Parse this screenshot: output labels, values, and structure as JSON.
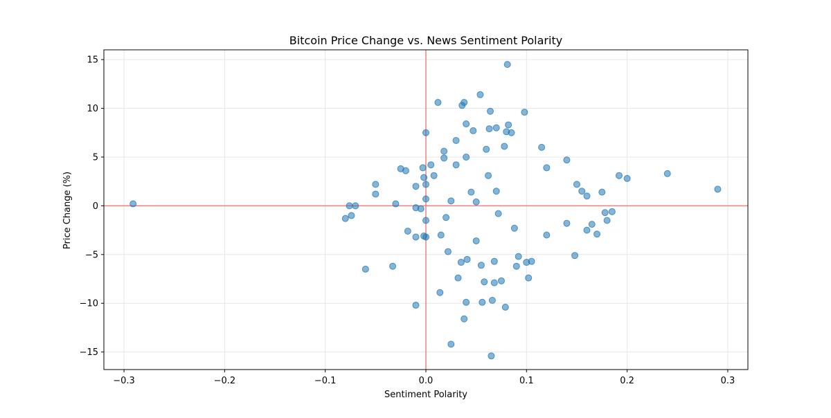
{
  "chart_data": {
    "type": "scatter",
    "title": "Bitcoin Price Change vs. News Sentiment Polarity",
    "xlabel": "Sentiment Polarity",
    "ylabel": "Price Change (%)",
    "xlim": [
      -0.32,
      0.32
    ],
    "ylim": [
      -16.8,
      16
    ],
    "xticks": [
      -0.3,
      -0.2,
      -0.1,
      0.0,
      0.1,
      0.2,
      0.3
    ],
    "xtick_labels": [
      "−0.3",
      "−0.2",
      "−0.1",
      "0.0",
      "0.1",
      "0.2",
      "0.3"
    ],
    "yticks": [
      -15,
      -10,
      -5,
      0,
      5,
      10,
      15
    ],
    "ytick_labels": [
      "−15",
      "−10",
      "−5",
      "0",
      "5",
      "10",
      "15"
    ],
    "grid": true,
    "reference_lines": {
      "x": 0,
      "y": 0,
      "color": "#f08080"
    },
    "point_color": "#1f77b4",
    "points": [
      {
        "x": -0.291,
        "y": 0.2
      },
      {
        "x": -0.08,
        "y": -1.3
      },
      {
        "x": -0.076,
        "y": 0.0
      },
      {
        "x": -0.07,
        "y": 0.0
      },
      {
        "x": -0.074,
        "y": -1.0
      },
      {
        "x": -0.06,
        "y": -6.5
      },
      {
        "x": -0.05,
        "y": 2.2
      },
      {
        "x": -0.05,
        "y": 1.2
      },
      {
        "x": -0.033,
        "y": -6.2
      },
      {
        "x": -0.03,
        "y": 0.2
      },
      {
        "x": -0.025,
        "y": 3.8
      },
      {
        "x": -0.02,
        "y": 3.6
      },
      {
        "x": -0.018,
        "y": -2.6
      },
      {
        "x": -0.01,
        "y": 2.0
      },
      {
        "x": -0.01,
        "y": -10.2
      },
      {
        "x": -0.01,
        "y": -3.2
      },
      {
        "x": -0.01,
        "y": -0.2
      },
      {
        "x": -0.005,
        "y": -0.3
      },
      {
        "x": -0.003,
        "y": 3.9
      },
      {
        "x": -0.002,
        "y": 2.9
      },
      {
        "x": -0.002,
        "y": -3.1
      },
      {
        "x": 0.0,
        "y": 7.5
      },
      {
        "x": 0.0,
        "y": 2.2
      },
      {
        "x": 0.0,
        "y": 0.7
      },
      {
        "x": 0.0,
        "y": -1.5
      },
      {
        "x": 0.0,
        "y": -3.2
      },
      {
        "x": 0.005,
        "y": 4.2
      },
      {
        "x": 0.008,
        "y": 3.1
      },
      {
        "x": 0.012,
        "y": 10.6
      },
      {
        "x": 0.014,
        "y": -8.9
      },
      {
        "x": 0.015,
        "y": -3.0
      },
      {
        "x": 0.018,
        "y": 5.6
      },
      {
        "x": 0.018,
        "y": 4.9
      },
      {
        "x": 0.02,
        "y": -1.2
      },
      {
        "x": 0.022,
        "y": -4.7
      },
      {
        "x": 0.025,
        "y": -14.2
      },
      {
        "x": 0.025,
        "y": 0.5
      },
      {
        "x": 0.03,
        "y": 6.7
      },
      {
        "x": 0.03,
        "y": 4.2
      },
      {
        "x": 0.032,
        "y": -7.4
      },
      {
        "x": 0.035,
        "y": -5.8
      },
      {
        "x": 0.036,
        "y": 10.3
      },
      {
        "x": 0.038,
        "y": 10.6
      },
      {
        "x": 0.038,
        "y": -11.6
      },
      {
        "x": 0.04,
        "y": 8.4
      },
      {
        "x": 0.04,
        "y": -9.9
      },
      {
        "x": 0.04,
        "y": 5.0
      },
      {
        "x": 0.041,
        "y": -5.5
      },
      {
        "x": 0.045,
        "y": 1.4
      },
      {
        "x": 0.047,
        "y": 7.7
      },
      {
        "x": 0.05,
        "y": -3.6
      },
      {
        "x": 0.05,
        "y": 0.4
      },
      {
        "x": 0.054,
        "y": 11.4
      },
      {
        "x": 0.055,
        "y": -6.1
      },
      {
        "x": 0.056,
        "y": -9.9
      },
      {
        "x": 0.058,
        "y": -7.8
      },
      {
        "x": 0.06,
        "y": 5.8
      },
      {
        "x": 0.062,
        "y": 3.1
      },
      {
        "x": 0.063,
        "y": 7.9
      },
      {
        "x": 0.064,
        "y": 9.7
      },
      {
        "x": 0.065,
        "y": -15.4
      },
      {
        "x": 0.066,
        "y": -9.7
      },
      {
        "x": 0.068,
        "y": -5.7
      },
      {
        "x": 0.068,
        "y": -7.9
      },
      {
        "x": 0.07,
        "y": 8.0
      },
      {
        "x": 0.07,
        "y": 1.5
      },
      {
        "x": 0.072,
        "y": -0.8
      },
      {
        "x": 0.075,
        "y": -7.7
      },
      {
        "x": 0.078,
        "y": 6.1
      },
      {
        "x": 0.079,
        "y": -10.4
      },
      {
        "x": 0.08,
        "y": 7.6
      },
      {
        "x": 0.081,
        "y": 14.5
      },
      {
        "x": 0.082,
        "y": 8.3
      },
      {
        "x": 0.085,
        "y": 7.5
      },
      {
        "x": 0.088,
        "y": -2.3
      },
      {
        "x": 0.09,
        "y": -6.2
      },
      {
        "x": 0.092,
        "y": -5.2
      },
      {
        "x": 0.098,
        "y": 9.6
      },
      {
        "x": 0.1,
        "y": -5.8
      },
      {
        "x": 0.102,
        "y": -7.4
      },
      {
        "x": 0.105,
        "y": -5.7
      },
      {
        "x": 0.115,
        "y": 6.0
      },
      {
        "x": 0.12,
        "y": 3.9
      },
      {
        "x": 0.12,
        "y": -3.0
      },
      {
        "x": 0.14,
        "y": 4.7
      },
      {
        "x": 0.14,
        "y": -1.8
      },
      {
        "x": 0.148,
        "y": -5.1
      },
      {
        "x": 0.15,
        "y": 2.2
      },
      {
        "x": 0.155,
        "y": 1.5
      },
      {
        "x": 0.16,
        "y": 1.0
      },
      {
        "x": 0.16,
        "y": -2.5
      },
      {
        "x": 0.165,
        "y": -1.9
      },
      {
        "x": 0.17,
        "y": -2.9
      },
      {
        "x": 0.175,
        "y": 1.4
      },
      {
        "x": 0.178,
        "y": -0.7
      },
      {
        "x": 0.18,
        "y": -1.5
      },
      {
        "x": 0.185,
        "y": -0.6
      },
      {
        "x": 0.192,
        "y": 3.1
      },
      {
        "x": 0.2,
        "y": 2.8
      },
      {
        "x": 0.24,
        "y": 3.3
      },
      {
        "x": 0.29,
        "y": 1.7
      }
    ]
  }
}
